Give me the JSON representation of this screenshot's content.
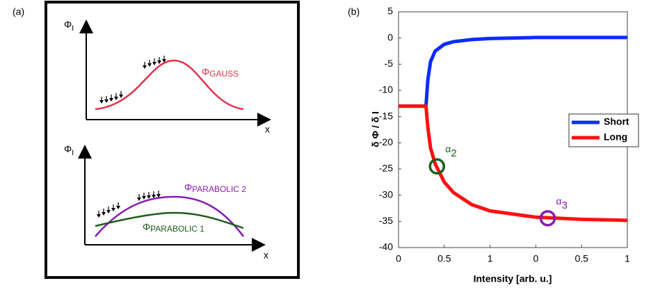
{
  "panel_a": {
    "label": "(a)",
    "top": {
      "y_axis": "Φ",
      "y_sub": "I",
      "x_axis": "x",
      "curve": {
        "symbol": "Φ",
        "sub": "GAUSS"
      }
    },
    "bottom": {
      "y_axis": "Φ",
      "y_sub": "I",
      "x_axis": "x",
      "curves": [
        {
          "symbol": "Φ",
          "sub": "PARABOLIC 2"
        },
        {
          "symbol": "Φ",
          "sub": "PARABOLIC 1"
        }
      ]
    }
  },
  "chart_data": {
    "type": "line",
    "panel_label": "(b)",
    "x_label": "Intensity [arb. u.]",
    "y_label": "δ Φ / δ I",
    "x": [
      0,
      0.3,
      0.32,
      0.35,
      0.4,
      0.5,
      0.6,
      0.8,
      1.0,
      1.5,
      2.0,
      2.5
    ],
    "series": [
      {
        "name": "Short",
        "color": "#0a2cff",
        "values": [
          -13,
          -13,
          -8,
          -4.5,
          -2.5,
          -1.2,
          -0.7,
          -0.3,
          -0.1,
          0.1,
          0.1,
          0.1
        ]
      },
      {
        "name": "Long",
        "color": "#ff1010",
        "values": [
          -13,
          -13,
          -17,
          -21,
          -24,
          -27.5,
          -29.5,
          -31.8,
          -33,
          -34.2,
          -34.6,
          -34.8
        ]
      }
    ],
    "annotations": [
      {
        "symbol": "α",
        "sub": "2",
        "x": 0.42,
        "y": -24.5,
        "color": "#1a5e1a"
      },
      {
        "symbol": "α",
        "sub": "3",
        "x": 1.63,
        "y": -34.4,
        "color": "#8a1ab0"
      }
    ],
    "xlim": [
      0,
      2.5
    ],
    "xticks": [
      0,
      0.5,
      1,
      {
        "value": 1.5,
        "label": "0"
      },
      {
        "value": 2,
        "label": "0.5"
      },
      {
        "value": 2.5,
        "label": "1"
      }
    ],
    "ylim": [
      -40,
      5
    ],
    "yticks": [
      5,
      0,
      -5,
      -10,
      -15,
      -20,
      -25,
      -30,
      -35,
      -40
    ],
    "legend": "right"
  }
}
